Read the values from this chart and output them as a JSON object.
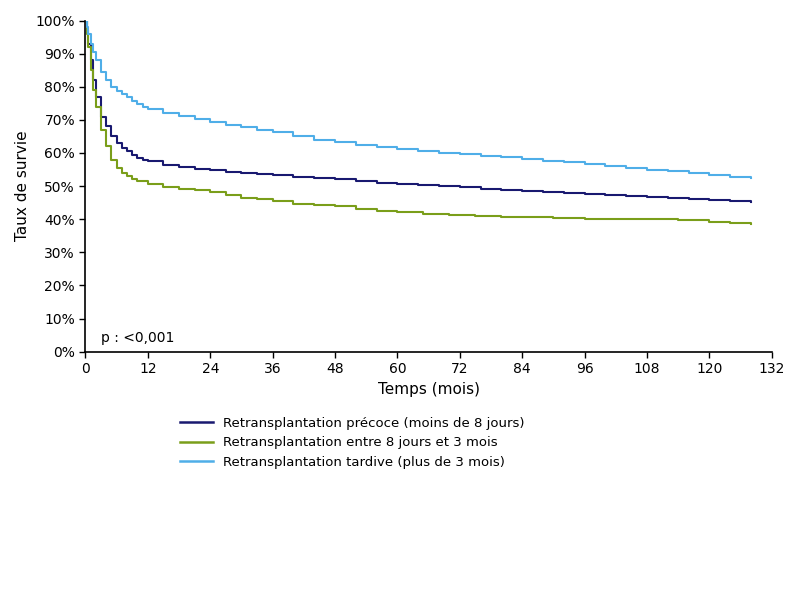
{
  "title": "",
  "xlabel": "Temps (mois)",
  "ylabel": "Taux de survie",
  "xlim": [
    0,
    132
  ],
  "ylim": [
    0,
    1.0
  ],
  "xticks": [
    0,
    12,
    24,
    36,
    48,
    60,
    72,
    84,
    96,
    108,
    120,
    132
  ],
  "yticks": [
    0.0,
    0.1,
    0.2,
    0.3,
    0.4,
    0.5,
    0.6,
    0.7,
    0.8,
    0.9,
    1.0
  ],
  "pvalue_text": "p : <0,001",
  "legend_labels": [
    "Retransplantation précoce (moins de 8 jours)",
    "Retransplantation entre 8 jours et 3 mois",
    "Retransplantation tardive (plus de 3 mois)"
  ],
  "colors": {
    "precoce": "#191970",
    "entre": "#7a9e1a",
    "tardive": "#4faee8"
  },
  "curve_precoce": {
    "t": [
      0,
      0.2,
      0.5,
      1,
      1.5,
      2,
      3,
      4,
      5,
      6,
      7,
      8,
      9,
      10,
      11,
      12,
      15,
      18,
      21,
      24,
      27,
      30,
      33,
      36,
      40,
      44,
      48,
      52,
      56,
      60,
      64,
      68,
      72,
      76,
      80,
      84,
      88,
      92,
      96,
      100,
      104,
      108,
      112,
      116,
      120,
      124,
      128
    ],
    "s": [
      1.0,
      0.97,
      0.93,
      0.88,
      0.82,
      0.77,
      0.71,
      0.68,
      0.65,
      0.63,
      0.615,
      0.605,
      0.595,
      0.585,
      0.58,
      0.575,
      0.565,
      0.558,
      0.553,
      0.548,
      0.544,
      0.54,
      0.536,
      0.533,
      0.528,
      0.524,
      0.52,
      0.515,
      0.51,
      0.505,
      0.502,
      0.499,
      0.496,
      0.492,
      0.489,
      0.486,
      0.483,
      0.48,
      0.477,
      0.473,
      0.47,
      0.468,
      0.465,
      0.462,
      0.458,
      0.456,
      0.453
    ]
  },
  "curve_entre": {
    "t": [
      0,
      0.2,
      0.5,
      1,
      1.5,
      2,
      3,
      4,
      5,
      6,
      7,
      8,
      9,
      10,
      12,
      15,
      18,
      21,
      24,
      27,
      30,
      33,
      36,
      40,
      44,
      48,
      52,
      56,
      60,
      65,
      70,
      75,
      80,
      85,
      90,
      96,
      102,
      108,
      114,
      120,
      124,
      128
    ],
    "s": [
      1.0,
      0.96,
      0.92,
      0.85,
      0.79,
      0.74,
      0.67,
      0.62,
      0.58,
      0.555,
      0.54,
      0.53,
      0.522,
      0.515,
      0.505,
      0.498,
      0.492,
      0.487,
      0.481,
      0.472,
      0.465,
      0.46,
      0.455,
      0.447,
      0.443,
      0.44,
      0.432,
      0.426,
      0.422,
      0.415,
      0.412,
      0.41,
      0.408,
      0.406,
      0.404,
      0.402,
      0.401,
      0.4,
      0.398,
      0.391,
      0.389,
      0.387
    ]
  },
  "curve_tardive": {
    "t": [
      0,
      0.2,
      0.5,
      1,
      1.5,
      2,
      3,
      4,
      5,
      6,
      7,
      8,
      9,
      10,
      11,
      12,
      15,
      18,
      21,
      24,
      27,
      30,
      33,
      36,
      40,
      44,
      48,
      52,
      56,
      60,
      64,
      68,
      72,
      76,
      80,
      84,
      88,
      92,
      96,
      100,
      104,
      108,
      112,
      116,
      120,
      124,
      128
    ],
    "s": [
      1.0,
      0.98,
      0.96,
      0.93,
      0.905,
      0.88,
      0.845,
      0.82,
      0.8,
      0.788,
      0.778,
      0.768,
      0.758,
      0.748,
      0.74,
      0.733,
      0.722,
      0.712,
      0.703,
      0.695,
      0.685,
      0.677,
      0.669,
      0.662,
      0.65,
      0.64,
      0.632,
      0.625,
      0.618,
      0.612,
      0.606,
      0.601,
      0.597,
      0.592,
      0.587,
      0.582,
      0.577,
      0.572,
      0.567,
      0.561,
      0.556,
      0.55,
      0.545,
      0.54,
      0.534,
      0.529,
      0.524
    ]
  }
}
